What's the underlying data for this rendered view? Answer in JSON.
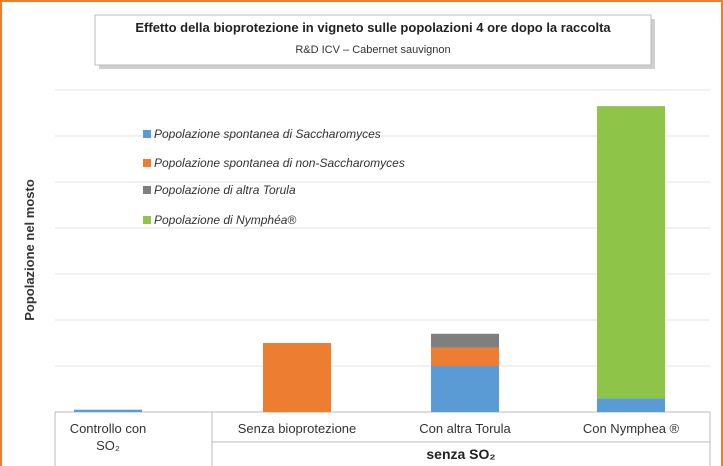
{
  "chart_data": {
    "type": "stacked_bar",
    "title": "Effetto della bioprotezione in vigneto sulle popolazioni 4 ore dopo la raccolta",
    "subtitle": "R&D ICV – Cabernet sauvignon",
    "y_label": "Popolazione nel mosto",
    "categories": [
      "Controllo con SO₂",
      "Senza bioprotezione",
      "Con altra Torula",
      "Con Nymphea ®"
    ],
    "group_label": "senza SO₂",
    "series": [
      {
        "name": "Popolazione spontanea di Saccharomyces",
        "color": "#5b9bd5",
        "values": [
          0.05,
          null,
          1.0,
          0.3
        ]
      },
      {
        "name": "Popolazione spontanea di non-Saccharomyces",
        "color": "#ed7d31",
        "values": [
          null,
          1.5,
          0.4,
          null
        ]
      },
      {
        "name": "Popolazione di altra Torula",
        "color": "#7f7f7f",
        "values": [
          null,
          null,
          0.3,
          null
        ]
      },
      {
        "name": "Popolazione di Nymphéa®",
        "color": "#8ec549",
        "values": [
          null,
          null,
          null,
          6.35
        ]
      }
    ],
    "ylim": [
      0,
      7
    ],
    "yticks": [
      0,
      1,
      2,
      3,
      4,
      5,
      6,
      7
    ],
    "grid": true,
    "legend": "upper left"
  }
}
